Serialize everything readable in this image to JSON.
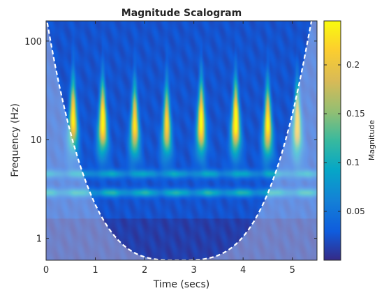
{
  "chart_data": {
    "type": "heatmap",
    "title": "Magnitude Scalogram",
    "xlabel": "Time (secs)",
    "ylabel": "Frequency (Hz)",
    "x_scale": "linear",
    "y_scale": "log",
    "xlim": [
      0,
      5.5
    ],
    "ylim": [
      0.6,
      160
    ],
    "x_ticks": [
      0,
      1,
      2,
      3,
      4,
      5
    ],
    "x_tick_labels": [
      "0",
      "1",
      "2",
      "3",
      "4",
      "5"
    ],
    "y_ticks": [
      1,
      10,
      100
    ],
    "y_tick_labels": [
      "1",
      "10",
      "100"
    ],
    "colormap": "parula",
    "color_range": [
      0.0,
      0.245
    ],
    "colorbar": {
      "label": "Magnitude",
      "ticks": [
        0.05,
        0.1,
        0.15,
        0.2
      ],
      "tick_labels": [
        "0.05",
        "0.1",
        "0.15",
        "0.2"
      ]
    },
    "cone_of_influence": {
      "style": "white dashed line",
      "min_frequency": 0.6,
      "time_at_min": 2.7
    },
    "shaded_outside_cone": true,
    "band_energy": [
      {
        "frequency_hz": 2.9,
        "magnitude": 0.09
      },
      {
        "frequency_hz": 4.5,
        "magnitude": 0.07
      }
    ],
    "bursts": [
      {
        "time": 0.55,
        "peak_frequency": 16,
        "magnitude": 0.22
      },
      {
        "time": 1.15,
        "peak_frequency": 15,
        "magnitude": 0.235
      },
      {
        "time": 1.8,
        "peak_frequency": 14,
        "magnitude": 0.21
      },
      {
        "time": 2.45,
        "peak_frequency": 14,
        "magnitude": 0.2
      },
      {
        "time": 3.15,
        "peak_frequency": 15,
        "magnitude": 0.235
      },
      {
        "time": 3.85,
        "peak_frequency": 15,
        "magnitude": 0.245
      },
      {
        "time": 4.5,
        "peak_frequency": 14,
        "magnitude": 0.225
      },
      {
        "time": 5.1,
        "peak_frequency": 14,
        "magnitude": 0.2
      }
    ],
    "grid": false
  }
}
